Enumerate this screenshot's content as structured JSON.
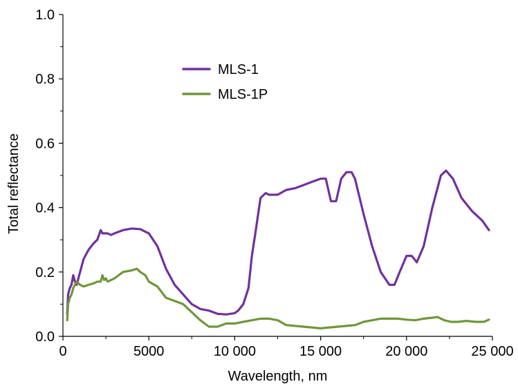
{
  "chart_data": {
    "type": "line",
    "xlabel": "Wavelength, nm",
    "ylabel": "Total reflectance",
    "xlim": [
      0,
      25000
    ],
    "ylim": [
      0,
      1.0
    ],
    "x_ticks": [
      0,
      5000,
      10000,
      15000,
      20000,
      25000
    ],
    "x_tick_labels": [
      "0",
      "5000",
      "10 000",
      "15 000",
      "20 000",
      "25 000"
    ],
    "y_ticks": [
      0,
      0.2,
      0.4,
      0.6,
      0.8,
      1.0
    ],
    "y_tick_labels": [
      "0.0",
      "0.2",
      "0.4",
      "0.6",
      "0.8",
      "1.0"
    ],
    "grid": false,
    "legend_position": "upper-center",
    "series": [
      {
        "name": "MLS-1",
        "color": "#7030a0",
        "x": [
          250,
          300,
          400,
          500,
          600,
          700,
          800,
          1000,
          1200,
          1500,
          1800,
          2000,
          2200,
          2300,
          2400,
          2600,
          2800,
          3000,
          3500,
          4000,
          4500,
          5000,
          5500,
          6000,
          6500,
          7000,
          7500,
          8000,
          8500,
          9000,
          9500,
          10000,
          10200,
          10500,
          10800,
          11000,
          11200,
          11500,
          11800,
          12000,
          12500,
          13000,
          13500,
          14000,
          14500,
          15000,
          15300,
          15600,
          15900,
          16200,
          16500,
          16800,
          17000,
          17500,
          18000,
          18500,
          19000,
          19300,
          19600,
          20000,
          20300,
          20600,
          21000,
          21500,
          22000,
          22300,
          22700,
          23200,
          23800,
          24400,
          24800
        ],
        "y": [
          0.07,
          0.13,
          0.15,
          0.16,
          0.19,
          0.17,
          0.16,
          0.2,
          0.24,
          0.27,
          0.29,
          0.3,
          0.33,
          0.32,
          0.32,
          0.32,
          0.315,
          0.32,
          0.33,
          0.335,
          0.333,
          0.32,
          0.28,
          0.21,
          0.16,
          0.13,
          0.1,
          0.085,
          0.08,
          0.07,
          0.068,
          0.072,
          0.08,
          0.1,
          0.15,
          0.25,
          0.32,
          0.43,
          0.445,
          0.44,
          0.44,
          0.455,
          0.46,
          0.47,
          0.48,
          0.49,
          0.49,
          0.42,
          0.42,
          0.49,
          0.51,
          0.51,
          0.49,
          0.38,
          0.28,
          0.2,
          0.16,
          0.16,
          0.2,
          0.25,
          0.25,
          0.23,
          0.28,
          0.4,
          0.5,
          0.515,
          0.49,
          0.43,
          0.39,
          0.36,
          0.33
        ]
      },
      {
        "name": "MLS-1P",
        "color": "#70963a",
        "x": [
          250,
          300,
          400,
          500,
          600,
          700,
          800,
          1000,
          1200,
          1500,
          1800,
          2000,
          2200,
          2300,
          2400,
          2500,
          2600,
          3000,
          3500,
          4000,
          4300,
          4500,
          4800,
          5000,
          5500,
          6000,
          6500,
          7000,
          7500,
          8000,
          8500,
          9000,
          9500,
          10000,
          10500,
          11000,
          11500,
          12000,
          12500,
          13000,
          14000,
          15000,
          16000,
          17000,
          17500,
          18000,
          18500,
          19500,
          20000,
          20500,
          21000,
          21500,
          21800,
          22200,
          22600,
          23000,
          23500,
          24000,
          24500,
          24800
        ],
        "y": [
          0.05,
          0.1,
          0.12,
          0.13,
          0.15,
          0.16,
          0.17,
          0.16,
          0.155,
          0.16,
          0.165,
          0.17,
          0.17,
          0.19,
          0.175,
          0.18,
          0.17,
          0.18,
          0.2,
          0.205,
          0.21,
          0.2,
          0.19,
          0.17,
          0.155,
          0.12,
          0.11,
          0.1,
          0.075,
          0.05,
          0.03,
          0.03,
          0.04,
          0.04,
          0.045,
          0.05,
          0.055,
          0.055,
          0.05,
          0.035,
          0.03,
          0.025,
          0.03,
          0.035,
          0.045,
          0.05,
          0.055,
          0.055,
          0.052,
          0.05,
          0.055,
          0.058,
          0.06,
          0.05,
          0.045,
          0.045,
          0.048,
          0.045,
          0.045,
          0.052
        ]
      }
    ]
  }
}
